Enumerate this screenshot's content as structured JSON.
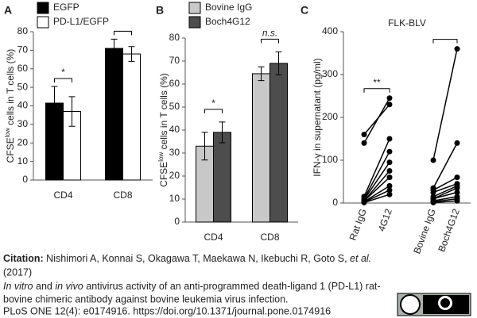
{
  "chart_data": [
    {
      "type": "bar",
      "panel_label": "A",
      "ylabel": {
        "main": "CFSE",
        "sup": "low",
        "rest": " cells in T cells (%)"
      },
      "categories": [
        "CD4",
        "CD8"
      ],
      "series": [
        {
          "name": "EGFP",
          "color": "#000000",
          "values": [
            41.5,
            71
          ],
          "errors": [
            9,
            5
          ]
        },
        {
          "name": "PD-L1/EGFP",
          "color": "#ffffff",
          "values": [
            37,
            68
          ],
          "errors": [
            8,
            4
          ]
        }
      ],
      "bracket_labels": [
        "*",
        null
      ],
      "ylim": [
        0,
        80
      ],
      "yticks": [
        0,
        10,
        20,
        30,
        40,
        50,
        60,
        70,
        80
      ]
    },
    {
      "type": "bar",
      "panel_label": "B",
      "ylabel": {
        "main": "CFSE",
        "sup": "low",
        "rest": " cells in T cells (%)"
      },
      "categories": [
        "CD4",
        "CD8"
      ],
      "series": [
        {
          "name": "Bovine IgG",
          "color": "#c8c8c8",
          "values": [
            33,
            64.5
          ],
          "errors": [
            6,
            3
          ]
        },
        {
          "name": "Boch4G12",
          "color": "#4d4d4d",
          "values": [
            39,
            69
          ],
          "errors": [
            4.5,
            5
          ]
        }
      ],
      "bracket_labels": [
        "*",
        "n.s."
      ],
      "ylim": [
        0,
        80
      ],
      "yticks": [
        0,
        10,
        20,
        30,
        40,
        50,
        60,
        70,
        80
      ]
    },
    {
      "type": "line",
      "panel_label": "C",
      "title": "FLK-BLV",
      "ylabel": "IFN-γ in supernatant (pg/ml)",
      "categories": [
        "Rat IgG",
        "4G12",
        "Bovine IgG",
        "Boch4G12"
      ],
      "series": [
        {
          "color": "#000000",
          "values": [
            160,
            230,
            null,
            null
          ]
        },
        {
          "color": "#000000",
          "values": [
            140,
            245,
            null,
            null
          ]
        },
        {
          "color": "#000000",
          "values": [
            15,
            150,
            null,
            null
          ]
        },
        {
          "color": "#000000",
          "values": [
            10,
            120,
            null,
            null
          ]
        },
        {
          "color": "#000000",
          "values": [
            8,
            95,
            null,
            null
          ]
        },
        {
          "color": "#000000",
          "values": [
            5,
            75,
            null,
            null
          ]
        },
        {
          "color": "#000000",
          "values": [
            5,
            60,
            null,
            null
          ]
        },
        {
          "color": "#000000",
          "values": [
            3,
            40,
            null,
            null
          ]
        },
        {
          "color": "#000000",
          "values": [
            2,
            30,
            null,
            null
          ]
        },
        {
          "color": "#000000",
          "values": [
            1,
            20,
            null,
            null
          ]
        },
        {
          "color": "#000000",
          "values": [
            null,
            null,
            100,
            360
          ]
        },
        {
          "color": "#000000",
          "values": [
            null,
            null,
            35,
            140
          ]
        },
        {
          "color": "#000000",
          "values": [
            null,
            null,
            30,
            60
          ]
        },
        {
          "color": "#000000",
          "values": [
            null,
            null,
            25,
            45
          ]
        },
        {
          "color": "#000000",
          "values": [
            null,
            null,
            15,
            40
          ]
        },
        {
          "color": "#000000",
          "values": [
            null,
            null,
            10,
            35
          ]
        },
        {
          "color": "#000000",
          "values": [
            null,
            null,
            10,
            25
          ]
        },
        {
          "color": "#000000",
          "values": [
            null,
            null,
            5,
            15
          ]
        },
        {
          "color": "#000000",
          "values": [
            null,
            null,
            3,
            10
          ]
        },
        {
          "color": "#000000",
          "values": [
            null,
            null,
            1,
            5
          ]
        }
      ],
      "bracket_labels": [
        "**",
        null
      ],
      "ylim": [
        0,
        400
      ],
      "yticks": [
        0,
        100,
        200,
        300,
        400
      ]
    }
  ],
  "citation": {
    "label": "Citation:",
    "authors": " Nishimori A, Konnai S, Okagawa T, Maekawa N, Ikebuchi R, Goto S, ",
    "etal": "et al.",
    "year": "(2017)",
    "title": [
      "In vitro",
      " and ",
      "in vivo",
      " antivirus activity of an anti-programmed death-ligand 1 (PD-L1) rat-",
      "bovine chimeric antibody against bovine leukemia virus infection."
    ],
    "journal": "PLoS ONE 12(4): e0174916. https://doi.org/10.1371/journal.pone.0174916"
  }
}
